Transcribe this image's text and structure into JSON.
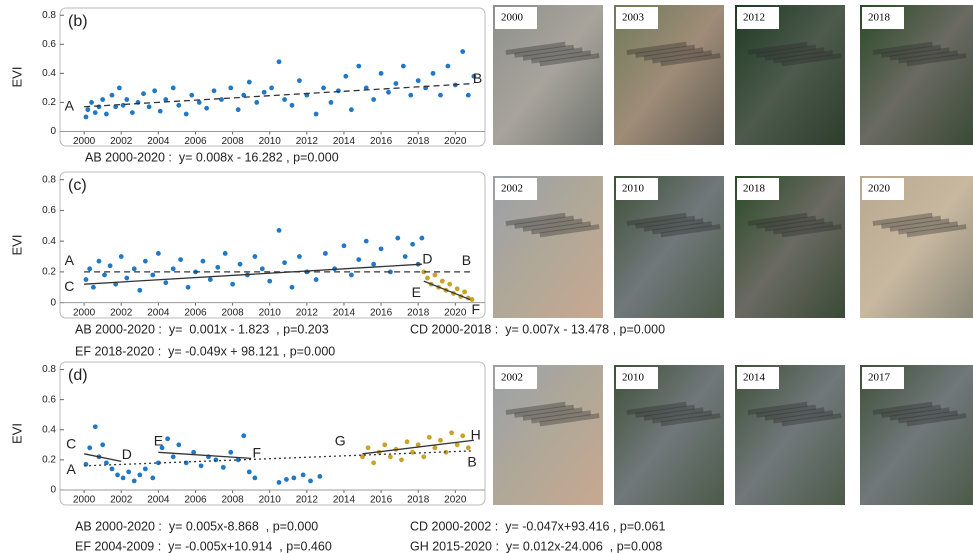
{
  "chart_data": [
    {
      "type": "scatter",
      "panel_label": "(b)",
      "ylabel": "EVI",
      "xlim": [
        1998.7,
        2021.6
      ],
      "ylim": [
        -0.1,
        0.85
      ],
      "xticks": [
        2000,
        2002,
        2004,
        2006,
        2008,
        2010,
        2012,
        2014,
        2016,
        2018,
        2020
      ],
      "yticks": [
        0,
        0.2,
        0.4,
        0.6,
        0.8
      ],
      "points": [
        {
          "color": "#1f78c8",
          "x": [
            2000.1,
            2000.2,
            2000.4,
            2000.6,
            2000.8,
            2001.0,
            2001.2,
            2001.5,
            2001.7,
            2001.9,
            2002.1,
            2002.3,
            2002.6,
            2002.9,
            2003.2,
            2003.5,
            2003.8,
            2004.1,
            2004.4,
            2004.8,
            2005.1,
            2005.5,
            2005.8,
            2006.2,
            2006.6,
            2007.0,
            2007.4,
            2007.9,
            2008.3,
            2008.6,
            2008.9,
            2009.3,
            2009.7,
            2010.1,
            2010.5,
            2010.8,
            2011.2,
            2011.6,
            2012.0,
            2012.5,
            2012.9,
            2013.3,
            2013.7,
            2014.1,
            2014.4,
            2014.8,
            2015.2,
            2015.6,
            2016.0,
            2016.4,
            2016.8,
            2017.2,
            2017.6,
            2018.0,
            2018.4,
            2018.8,
            2019.2,
            2019.6,
            2020.0,
            2020.4,
            2020.7,
            2021.0
          ],
          "y": [
            0.1,
            0.15,
            0.2,
            0.13,
            0.17,
            0.22,
            0.12,
            0.25,
            0.17,
            0.3,
            0.18,
            0.22,
            0.13,
            0.2,
            0.26,
            0.17,
            0.28,
            0.14,
            0.22,
            0.3,
            0.18,
            0.12,
            0.25,
            0.2,
            0.16,
            0.28,
            0.22,
            0.3,
            0.15,
            0.25,
            0.34,
            0.2,
            0.27,
            0.3,
            0.48,
            0.22,
            0.18,
            0.35,
            0.25,
            0.12,
            0.3,
            0.2,
            0.28,
            0.38,
            0.15,
            0.45,
            0.3,
            0.22,
            0.4,
            0.27,
            0.33,
            0.45,
            0.25,
            0.35,
            0.3,
            0.4,
            0.25,
            0.45,
            0.32,
            0.55,
            0.25,
            0.38
          ]
        }
      ],
      "trends": [
        {
          "style": "dashed",
          "color": "#333333",
          "x": [
            2000,
            2021
          ],
          "y": [
            0.17,
            0.33
          ]
        }
      ],
      "annotations": [
        "A",
        "B"
      ],
      "equations": [
        "AB 2000-2020 :  y= 0.008x - 16.282 , p=0.000"
      ]
    },
    {
      "type": "scatter",
      "panel_label": "(c)",
      "ylabel": "EVI",
      "xlim": [
        1998.7,
        2021.6
      ],
      "ylim": [
        -0.1,
        0.85
      ],
      "xticks": [
        2000,
        2002,
        2004,
        2006,
        2008,
        2010,
        2012,
        2014,
        2016,
        2018,
        2020
      ],
      "yticks": [
        0,
        0.2,
        0.4,
        0.6,
        0.8
      ],
      "points": [
        {
          "color": "#1f78c8",
          "x": [
            2000.1,
            2000.3,
            2000.5,
            2000.8,
            2001.1,
            2001.4,
            2001.7,
            2002.0,
            2002.3,
            2002.7,
            2003.0,
            2003.3,
            2003.7,
            2004.0,
            2004.4,
            2004.8,
            2005.2,
            2005.6,
            2006.0,
            2006.4,
            2006.8,
            2007.2,
            2007.6,
            2008.0,
            2008.4,
            2008.8,
            2009.2,
            2009.6,
            2010.0,
            2010.5,
            2010.8,
            2011.2,
            2011.6,
            2012.0,
            2012.5,
            2013.0,
            2013.5,
            2014.0,
            2014.4,
            2014.8,
            2015.2,
            2015.6,
            2016.0,
            2016.5,
            2016.9,
            2017.3,
            2017.7,
            2018.0,
            2018.2
          ],
          "y": [
            0.15,
            0.22,
            0.1,
            0.27,
            0.18,
            0.24,
            0.12,
            0.3,
            0.16,
            0.22,
            0.08,
            0.27,
            0.18,
            0.32,
            0.13,
            0.22,
            0.28,
            0.1,
            0.2,
            0.27,
            0.15,
            0.23,
            0.32,
            0.12,
            0.25,
            0.18,
            0.3,
            0.22,
            0.14,
            0.47,
            0.26,
            0.1,
            0.3,
            0.2,
            0.15,
            0.32,
            0.22,
            0.37,
            0.18,
            0.28,
            0.4,
            0.25,
            0.35,
            0.2,
            0.42,
            0.3,
            0.38,
            0.25,
            0.42
          ]
        },
        {
          "color": "#c9a227",
          "x": [
            2018.3,
            2018.5,
            2018.7,
            2018.9,
            2019.1,
            2019.3,
            2019.5,
            2019.7,
            2019.9,
            2020.1,
            2020.3,
            2020.5,
            2020.7,
            2020.9
          ],
          "y": [
            0.2,
            0.16,
            0.12,
            0.18,
            0.1,
            0.14,
            0.08,
            0.12,
            0.06,
            0.09,
            0.04,
            0.07,
            0.03,
            0.02
          ]
        }
      ],
      "trends": [
        {
          "style": "dashed",
          "color": "#333333",
          "x": [
            2000,
            2021
          ],
          "y": [
            0.2,
            0.2
          ]
        },
        {
          "style": "solid",
          "color": "#333333",
          "x": [
            2000,
            2018.2
          ],
          "y": [
            0.12,
            0.25
          ]
        },
        {
          "style": "solid",
          "color": "#333333",
          "x": [
            2018.3,
            2020.8
          ],
          "y": [
            0.14,
            0.02
          ]
        }
      ],
      "annotations": [
        "A",
        "B",
        "C",
        "D",
        "E",
        "F"
      ],
      "equations": [
        "AB 2000-2020 :  y=  0.001x - 1.823  , p=0.203",
        "CD 2000-2018 :  y= 0.007x - 13.478 , p=0.000",
        "EF 2018-2020 :  y= -0.049x + 98.121 , p=0.000"
      ]
    },
    {
      "type": "scatter",
      "panel_label": "(d)",
      "ylabel": "EVI",
      "xlim": [
        1998.7,
        2021.6
      ],
      "ylim": [
        -0.1,
        0.85
      ],
      "xticks": [
        2000,
        2002,
        2004,
        2006,
        2008,
        2010,
        2012,
        2014,
        2016,
        2018,
        2020
      ],
      "yticks": [
        0,
        0.2,
        0.4,
        0.6,
        0.8
      ],
      "points": [
        {
          "color": "#1f78c8",
          "x": [
            2000.1,
            2000.3,
            2000.6,
            2000.8,
            2001.0,
            2001.2,
            2001.5,
            2001.8,
            2002.1,
            2002.4,
            2002.7,
            2003.0,
            2003.3,
            2003.7,
            2004.0,
            2004.2,
            2004.5,
            2004.8,
            2005.1,
            2005.5,
            2005.9,
            2006.3,
            2006.7,
            2007.1,
            2007.5,
            2007.9,
            2008.3,
            2008.6,
            2008.9,
            2009.2,
            2010.5,
            2010.9,
            2011.3,
            2011.8,
            2012.2,
            2012.7
          ],
          "y": [
            0.17,
            0.28,
            0.42,
            0.22,
            0.3,
            0.18,
            0.14,
            0.1,
            0.08,
            0.12,
            0.06,
            0.1,
            0.14,
            0.08,
            0.18,
            0.28,
            0.34,
            0.22,
            0.3,
            0.18,
            0.25,
            0.16,
            0.22,
            0.2,
            0.15,
            0.25,
            0.2,
            0.36,
            0.12,
            0.08,
            0.05,
            0.07,
            0.08,
            0.1,
            0.06,
            0.09
          ]
        },
        {
          "color": "#c9a227",
          "x": [
            2015.0,
            2015.3,
            2015.6,
            2015.9,
            2016.2,
            2016.5,
            2016.8,
            2017.1,
            2017.4,
            2017.7,
            2018.0,
            2018.3,
            2018.6,
            2018.9,
            2019.2,
            2019.5,
            2019.8,
            2020.1,
            2020.4,
            2020.7
          ],
          "y": [
            0.22,
            0.28,
            0.18,
            0.25,
            0.3,
            0.22,
            0.27,
            0.2,
            0.32,
            0.25,
            0.3,
            0.22,
            0.35,
            0.28,
            0.33,
            0.25,
            0.38,
            0.3,
            0.36,
            0.28
          ]
        }
      ],
      "trends": [
        {
          "style": "dotted",
          "color": "#333333",
          "x": [
            2000,
            2021
          ],
          "y": [
            0.16,
            0.26
          ]
        },
        {
          "style": "solid",
          "color": "#333333",
          "x": [
            2000,
            2002
          ],
          "y": [
            0.24,
            0.19
          ]
        },
        {
          "style": "solid",
          "color": "#333333",
          "x": [
            2004,
            2009
          ],
          "y": [
            0.25,
            0.21
          ]
        },
        {
          "style": "solid",
          "color": "#333333",
          "x": [
            2015,
            2021
          ],
          "y": [
            0.24,
            0.33
          ]
        }
      ],
      "annotations": [
        "A",
        "B",
        "C",
        "D",
        "E",
        "F",
        "G",
        "H"
      ],
      "equations": [
        "AB 2000-2020 :  y= 0.005x-8.868  , p=0.000",
        "CD 2000-2002 :  y= -0.047x+93.416 , p=0.061",
        "EF 2004-2009 :  y= -0.005x+10.914  , p=0.460",
        "GH 2015-2020 :  y= 0.012x-24.006  , p=0.008"
      ]
    }
  ],
  "photos": [
    [
      "2000",
      "2003",
      "2012",
      "2018"
    ],
    [
      "2002",
      "2010",
      "2018",
      "2020"
    ],
    [
      "2002",
      "2010",
      "2014",
      "2017"
    ]
  ]
}
